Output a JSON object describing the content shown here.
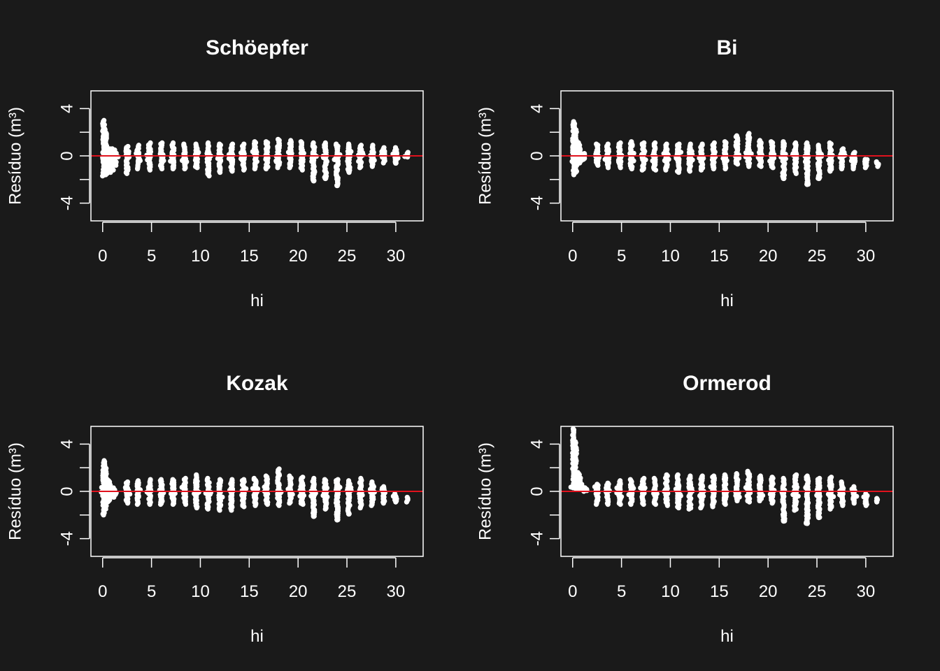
{
  "chart_data": [
    {
      "type": "scatter",
      "title": "Schöepfer",
      "xlabel": "hi",
      "ylabel": "Resíduo (m³)",
      "xlim": [
        -1.2,
        32.8
      ],
      "ylim": [
        -5.5,
        5.5
      ],
      "xticks": [
        0,
        5,
        10,
        15,
        20,
        25,
        30
      ],
      "yticks": [
        -4,
        0,
        4
      ],
      "ref_line_y": 0,
      "ref_color": "#e0121d",
      "columns": [
        [
          0.1,
          -1.7,
          3.0
        ],
        [
          0.3,
          -1.6,
          2.3
        ],
        [
          0.5,
          -1.5,
          0.7
        ],
        [
          0.7,
          -1.4,
          0.6
        ],
        [
          1.0,
          -1.2,
          0.6
        ],
        [
          1.3,
          -0.8,
          0.5
        ],
        [
          2.5,
          -1.5,
          0.8
        ],
        [
          3.6,
          -1.1,
          0.9
        ],
        [
          4.8,
          -1.2,
          1.1
        ],
        [
          6.0,
          -1.1,
          1.1
        ],
        [
          7.2,
          -1.1,
          1.1
        ],
        [
          8.4,
          -1.1,
          1.0
        ],
        [
          9.6,
          -1.0,
          1.0
        ],
        [
          10.8,
          -1.7,
          1.1
        ],
        [
          12.0,
          -1.4,
          1.0
        ],
        [
          13.2,
          -1.3,
          1.0
        ],
        [
          14.4,
          -1.2,
          1.0
        ],
        [
          15.6,
          -1.1,
          1.2
        ],
        [
          16.8,
          -1.1,
          1.2
        ],
        [
          18.0,
          -1.0,
          1.4
        ],
        [
          19.2,
          -1.0,
          1.3
        ],
        [
          20.4,
          -1.2,
          1.2
        ],
        [
          21.6,
          -2.0,
          1.1
        ],
        [
          22.8,
          -1.9,
          1.1
        ],
        [
          24.0,
          -2.5,
          1.0
        ],
        [
          25.2,
          -1.4,
          1.0
        ],
        [
          26.4,
          -1.0,
          0.9
        ],
        [
          27.6,
          -0.9,
          0.9
        ],
        [
          28.8,
          -0.6,
          0.7
        ],
        [
          30.0,
          -0.5,
          0.7
        ],
        [
          31.2,
          -0.1,
          0.3
        ]
      ],
      "outliers": [
        [
          21.6,
          -2.1
        ],
        [
          22.8,
          -1.9
        ],
        [
          24.0,
          -2.5
        ],
        [
          30.0,
          -0.6
        ]
      ]
    },
    {
      "type": "scatter",
      "title": "Bi",
      "xlabel": "hi",
      "ylabel": "Resíduo (m³)",
      "xlim": [
        -1.2,
        32.8
      ],
      "ylim": [
        -5.5,
        5.5
      ],
      "xticks": [
        0,
        5,
        10,
        15,
        20,
        25,
        30
      ],
      "yticks": [
        -4,
        0,
        4
      ],
      "ref_line_y": 0,
      "ref_color": "#e0121d",
      "columns": [
        [
          0.1,
          -1.6,
          2.9
        ],
        [
          0.3,
          -1.4,
          2.2
        ],
        [
          0.5,
          -0.8,
          1.2
        ],
        [
          0.7,
          -0.6,
          0.9
        ],
        [
          1.2,
          -0.3,
          0.2
        ],
        [
          2.5,
          -0.8,
          1.0
        ],
        [
          3.6,
          -1.0,
          1.0
        ],
        [
          4.8,
          -1.0,
          1.1
        ],
        [
          6.0,
          -1.1,
          1.2
        ],
        [
          7.2,
          -1.2,
          1.1
        ],
        [
          8.4,
          -1.2,
          1.1
        ],
        [
          9.6,
          -1.2,
          1.0
        ],
        [
          10.8,
          -1.4,
          1.0
        ],
        [
          12.0,
          -1.3,
          1.0
        ],
        [
          13.2,
          -1.2,
          1.0
        ],
        [
          14.4,
          -1.1,
          1.1
        ],
        [
          15.6,
          -1.1,
          1.2
        ],
        [
          16.8,
          -0.7,
          1.7
        ],
        [
          18.0,
          -0.9,
          1.9
        ],
        [
          19.2,
          -0.9,
          1.3
        ],
        [
          20.4,
          -1.0,
          1.2
        ],
        [
          21.6,
          -1.9,
          1.2
        ],
        [
          22.8,
          -1.5,
          1.1
        ],
        [
          24.0,
          -2.4,
          1.1
        ],
        [
          25.2,
          -1.9,
          0.9
        ],
        [
          26.4,
          -1.3,
          1.1
        ],
        [
          27.6,
          -1.1,
          0.6
        ],
        [
          28.8,
          -1.1,
          0.3
        ],
        [
          30.0,
          -1.0,
          -0.3
        ],
        [
          31.2,
          -0.9,
          -0.5
        ]
      ],
      "outliers": [
        [
          21.6,
          -1.9
        ],
        [
          24.0,
          -2.4
        ],
        [
          25.2,
          -1.9
        ]
      ]
    },
    {
      "type": "scatter",
      "title": "Kozak",
      "xlabel": "hi",
      "ylabel": "Resíduo (m³)",
      "xlim": [
        -1.2,
        32.8
      ],
      "ylim": [
        -5.5,
        5.5
      ],
      "xticks": [
        0,
        5,
        10,
        15,
        20,
        25,
        30
      ],
      "yticks": [
        -4,
        0,
        4
      ],
      "ref_line_y": 0,
      "ref_color": "#e0121d",
      "columns": [
        [
          0.1,
          -2.0,
          2.6
        ],
        [
          0.3,
          -1.5,
          2.3
        ],
        [
          0.5,
          -0.9,
          1.0
        ],
        [
          0.7,
          -0.8,
          0.8
        ],
        [
          1.2,
          -0.5,
          0.3
        ],
        [
          2.5,
          -1.0,
          0.8
        ],
        [
          3.6,
          -1.1,
          0.9
        ],
        [
          4.8,
          -1.1,
          1.0
        ],
        [
          6.0,
          -1.1,
          1.0
        ],
        [
          7.2,
          -1.1,
          1.0
        ],
        [
          8.4,
          -1.1,
          1.1
        ],
        [
          9.6,
          -1.4,
          1.4
        ],
        [
          10.8,
          -1.5,
          1.1
        ],
        [
          12.0,
          -1.6,
          1.0
        ],
        [
          13.2,
          -1.6,
          1.0
        ],
        [
          14.4,
          -1.3,
          1.0
        ],
        [
          15.6,
          -1.2,
          1.1
        ],
        [
          16.8,
          -1.1,
          1.3
        ],
        [
          18.0,
          -1.2,
          1.9
        ],
        [
          19.2,
          -1.0,
          1.3
        ],
        [
          20.4,
          -1.1,
          1.2
        ],
        [
          21.6,
          -2.1,
          1.1
        ],
        [
          22.8,
          -1.5,
          1.0
        ],
        [
          24.0,
          -2.4,
          1.0
        ],
        [
          25.2,
          -1.9,
          0.9
        ],
        [
          26.4,
          -1.4,
          1.1
        ],
        [
          27.6,
          -1.2,
          0.8
        ],
        [
          28.8,
          -1.0,
          0.4
        ],
        [
          30.0,
          -0.9,
          -0.2
        ],
        [
          31.2,
          -0.9,
          -0.5
        ]
      ],
      "outliers": [
        [
          21.6,
          -2.1
        ],
        [
          24.0,
          -2.4
        ],
        [
          25.2,
          -1.9
        ]
      ]
    },
    {
      "type": "scatter",
      "title": "Ormerod",
      "xlabel": "hi",
      "ylabel": "Resíduo (m³)",
      "xlim": [
        -1.2,
        32.8
      ],
      "ylim": [
        -5.5,
        5.5
      ],
      "xticks": [
        0,
        5,
        10,
        15,
        20,
        25,
        30
      ],
      "yticks": [
        -4,
        0,
        4
      ],
      "ref_line_y": 0,
      "ref_color": "#e0121d",
      "columns": [
        [
          0.1,
          0.3,
          5.3
        ],
        [
          0.3,
          0.3,
          4.2
        ],
        [
          0.5,
          0.2,
          1.6
        ],
        [
          0.7,
          0.2,
          1.5
        ],
        [
          1.0,
          0.1,
          0.6
        ],
        [
          1.2,
          0.0,
          0.3
        ],
        [
          2.5,
          -1.1,
          0.6
        ],
        [
          3.6,
          -1.1,
          0.7
        ],
        [
          4.8,
          -1.1,
          0.9
        ],
        [
          6.0,
          -1.1,
          1.0
        ],
        [
          7.2,
          -1.1,
          1.1
        ],
        [
          8.4,
          -1.1,
          1.1
        ],
        [
          9.6,
          -1.2,
          1.4
        ],
        [
          10.8,
          -1.4,
          1.4
        ],
        [
          12.0,
          -1.5,
          1.3
        ],
        [
          13.2,
          -1.4,
          1.3
        ],
        [
          14.4,
          -1.3,
          1.3
        ],
        [
          15.6,
          -1.1,
          1.4
        ],
        [
          16.8,
          -0.8,
          1.5
        ],
        [
          18.0,
          -0.9,
          1.7
        ],
        [
          19.2,
          -0.8,
          1.3
        ],
        [
          20.4,
          -1.0,
          1.2
        ],
        [
          21.6,
          -2.5,
          1.1
        ],
        [
          22.8,
          -1.6,
          1.4
        ],
        [
          24.0,
          -2.7,
          1.3
        ],
        [
          25.2,
          -2.2,
          1.1
        ],
        [
          26.4,
          -1.5,
          1.2
        ],
        [
          27.6,
          -1.2,
          0.8
        ],
        [
          28.8,
          -1.0,
          0.4
        ],
        [
          30.0,
          -1.2,
          -0.2
        ],
        [
          31.2,
          -0.9,
          -0.6
        ]
      ],
      "outliers": [
        [
          21.6,
          -2.5
        ],
        [
          24.0,
          -2.7
        ],
        [
          25.2,
          -2.2
        ]
      ]
    }
  ]
}
